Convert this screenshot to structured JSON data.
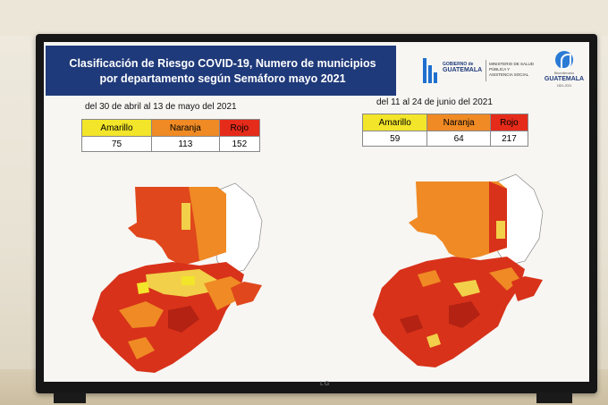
{
  "header": {
    "title": "Clasificación de Riesgo COVID-19, Numero de municipios por departamento según  Semáforo mayo 2021"
  },
  "logos": {
    "gobierno_line1": "GOBIERNO de",
    "gobierno_line2": "GUATEMALA",
    "ministerio": "MINISTERIO DE SALUD PÚBLICA Y ASISTENCIA SOCIAL",
    "gt_small": "Bicentenario",
    "gt_name": "GUATEMALA",
    "gt_years": "1821-2021"
  },
  "periods": [
    {
      "label": "del 30 de abril al 13 de mayo del 2021",
      "headers": [
        "Amarillo",
        "Naranja",
        "Rojo"
      ],
      "values": [
        "75",
        "113",
        "152"
      ]
    },
    {
      "label": "del 11 al 24 de junio del 2021",
      "headers": [
        "Amarillo",
        "Naranja",
        "Rojo"
      ],
      "values": [
        "59",
        "64",
        "217"
      ]
    }
  ],
  "colors": {
    "amarillo": "#f2e52a",
    "naranja": "#ef8a24",
    "rojo": "#e52b1a",
    "header_bg": "#1f3a7a"
  },
  "tv_brand": "LG"
}
